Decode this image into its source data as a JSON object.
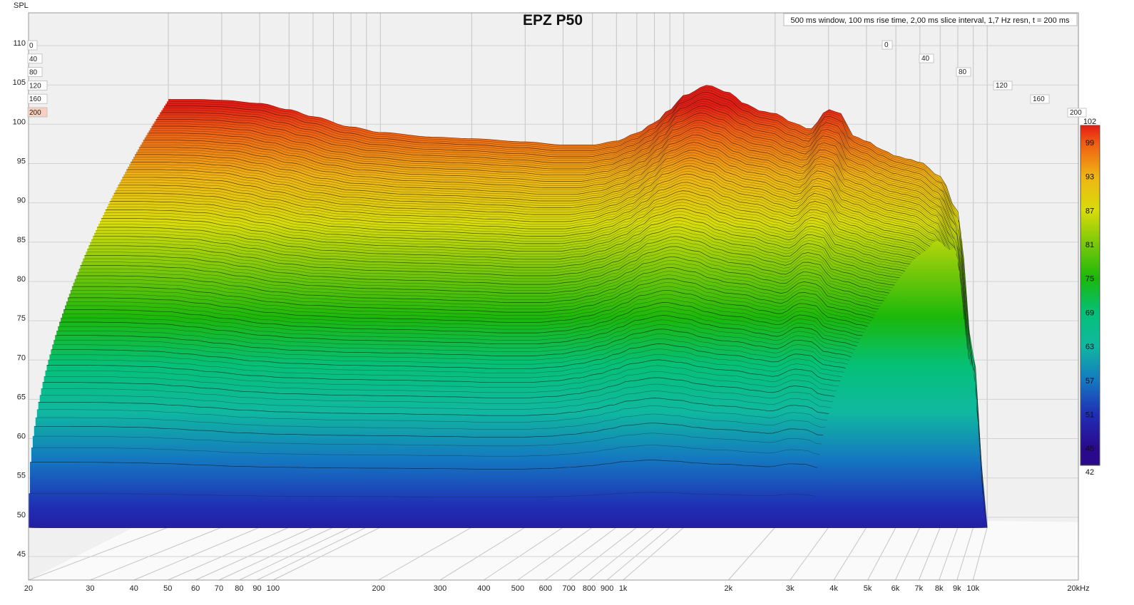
{
  "chart_data": {
    "type": "waterfall",
    "title": "EPZ P50",
    "settings_note": "500 ms window, 100 ms rise time, 2,00 ms slice interval, 1,7 Hz resn, t = 200 ms",
    "ylabel": "SPL",
    "x_scale": "log",
    "xlim": [
      20,
      20000
    ],
    "ylim": [
      43,
      111
    ],
    "x_ticks": [
      {
        "v": 20,
        "label": "20"
      },
      {
        "v": 30,
        "label": "30"
      },
      {
        "v": 40,
        "label": "40"
      },
      {
        "v": 50,
        "label": "50"
      },
      {
        "v": 60,
        "label": "60"
      },
      {
        "v": 70,
        "label": "70"
      },
      {
        "v": 80,
        "label": "80"
      },
      {
        "v": 90,
        "label": "90"
      },
      {
        "v": 100,
        "label": "100"
      },
      {
        "v": 200,
        "label": "200"
      },
      {
        "v": 300,
        "label": "300"
      },
      {
        "v": 400,
        "label": "400"
      },
      {
        "v": 500,
        "label": "500"
      },
      {
        "v": 600,
        "label": "600"
      },
      {
        "v": 700,
        "label": "700"
      },
      {
        "v": 800,
        "label": "800"
      },
      {
        "v": 900,
        "label": "900"
      },
      {
        "v": 1000,
        "label": "1k"
      },
      {
        "v": 2000,
        "label": "2k"
      },
      {
        "v": 3000,
        "label": "3k"
      },
      {
        "v": 4000,
        "label": "4k"
      },
      {
        "v": 5000,
        "label": "5k"
      },
      {
        "v": 6000,
        "label": "6k"
      },
      {
        "v": 7000,
        "label": "7k"
      },
      {
        "v": 8000,
        "label": "8k"
      },
      {
        "v": 9000,
        "label": "9k"
      },
      {
        "v": 10000,
        "label": "10k"
      },
      {
        "v": 20000,
        "label": "20kHz"
      }
    ],
    "y_ticks": [
      45,
      50,
      55,
      60,
      65,
      70,
      75,
      80,
      85,
      90,
      95,
      100,
      105,
      110
    ],
    "time_axis_labels_ms": [
      "0",
      "40",
      "80",
      "120",
      "160",
      "200"
    ],
    "time_axis_left_labels": [
      "0",
      "40",
      "80",
      "120",
      "160",
      "200"
    ],
    "floor_spl": 48.3,
    "series": [
      {
        "name": "t = 0 ms",
        "x": [
          20,
          25,
          30,
          40,
          50,
          60,
          80,
          100,
          150,
          200,
          300,
          400,
          500,
          600,
          700,
          800,
          900,
          1000,
          1200,
          1400,
          1600,
          1800,
          2000,
          2300,
          2600,
          3000,
          3300,
          3600,
          4000,
          4500,
          5000,
          5500,
          6000,
          7000,
          8000,
          9000,
          10000
        ],
        "values": [
          102.8,
          102.8,
          102.7,
          102.3,
          101.5,
          100.6,
          99.3,
          98.6,
          98.0,
          97.8,
          97.4,
          97.0,
          97.0,
          97.5,
          98.5,
          99.8,
          101.5,
          103.3,
          104.6,
          103.7,
          102.2,
          101.3,
          101.0,
          99.8,
          99.0,
          101.5,
          101.0,
          98.2,
          97.5,
          96.4,
          95.6,
          95.2,
          94.8,
          93.0,
          88.5,
          70.0,
          48.3
        ]
      }
    ],
    "colorbar": {
      "min": 42,
      "max": 102,
      "labels": [
        102,
        99,
        93,
        87,
        81,
        75,
        69,
        63,
        57,
        51,
        45,
        42
      ],
      "stops": [
        {
          "v": 45,
          "color": "#2a0a8c"
        },
        {
          "v": 51,
          "color": "#1f2fb5"
        },
        {
          "v": 57,
          "color": "#1478c0"
        },
        {
          "v": 63,
          "color": "#10b8a0"
        },
        {
          "v": 69,
          "color": "#05c077"
        },
        {
          "v": 75,
          "color": "#1bb80a"
        },
        {
          "v": 81,
          "color": "#78c80a"
        },
        {
          "v": 87,
          "color": "#d8dc0a"
        },
        {
          "v": 93,
          "color": "#f0b414"
        },
        {
          "v": 99,
          "color": "#f05a14"
        },
        {
          "v": 102,
          "color": "#e51c14"
        }
      ]
    },
    "background_color": "#f0f0f0",
    "grid": true
  }
}
